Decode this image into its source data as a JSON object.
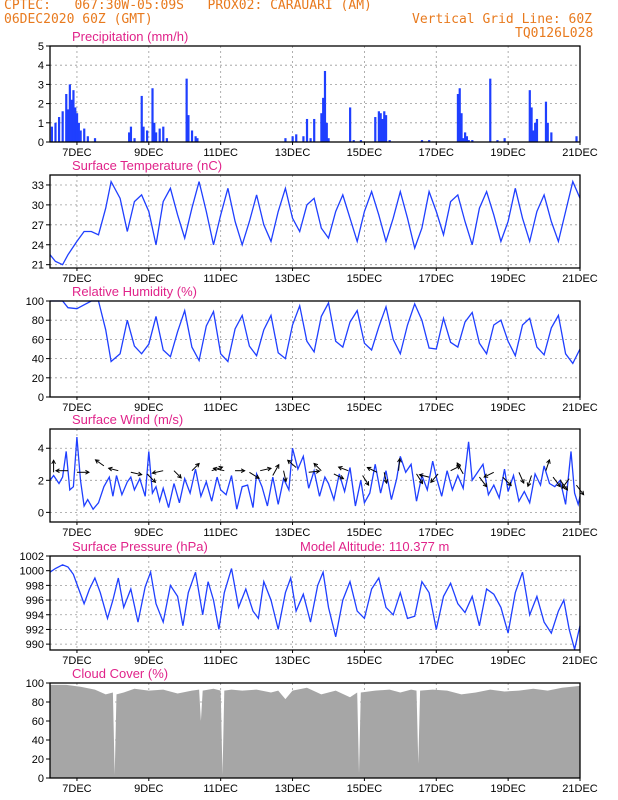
{
  "header": {
    "line1": "CPTEC:   067:30W-05:09S   PROX02: CARAUARI (AM)",
    "line2_left": "06DEC2020 60Z (GMT)",
    "line2_right": "Vertical Grid Line: 60Z",
    "line3_right": "TQ0126L028",
    "colors": {
      "header": "#e87a1e",
      "panel_title": "#e0238a",
      "series": "#1f3fff",
      "cloud": "#a6a6a6",
      "wind_arrow": "#000000"
    }
  },
  "x_axis": {
    "tick_labels": [
      "7DEC",
      "9DEC",
      "11DEC",
      "13DEC",
      "15DEC",
      "17DEC",
      "19DEC",
      "21DEC"
    ],
    "tick_days": [
      7,
      9,
      11,
      13,
      15,
      17,
      19,
      21
    ],
    "range_days": [
      6.25,
      21.0
    ]
  },
  "panels": [
    {
      "id": "precip",
      "title": "Precipitation (mm/h)",
      "extra": ""
    },
    {
      "id": "temp",
      "title": "Surface Temperature (nC)",
      "extra": ""
    },
    {
      "id": "rh",
      "title": "Relative Humidity (%)",
      "extra": ""
    },
    {
      "id": "wind",
      "title": "Surface Wind (m/s)",
      "extra": ""
    },
    {
      "id": "press",
      "title": "Surface Pressure (hPa)",
      "extra": "Model Altitude: 110.377 m"
    },
    {
      "id": "cloud",
      "title": "Cloud Cover (%)",
      "extra": ""
    }
  ],
  "chart_data": [
    {
      "id": "precip",
      "type": "bar",
      "title": "Precipitation (mm/h)",
      "ylim": [
        0,
        5
      ],
      "yticks": [
        "0",
        "1",
        "2",
        "3",
        "4",
        "5"
      ],
      "grid": true,
      "x": [
        6.3,
        6.4,
        6.5,
        6.6,
        6.7,
        6.75,
        6.8,
        6.85,
        6.9,
        6.95,
        7.0,
        7.05,
        7.1,
        7.2,
        7.3,
        7.5,
        8.45,
        8.5,
        8.6,
        8.8,
        8.85,
        8.95,
        9.1,
        9.15,
        9.2,
        9.3,
        9.4,
        9.5,
        10.05,
        10.1,
        10.2,
        10.3,
        10.35,
        12.8,
        13.0,
        13.1,
        13.3,
        13.4,
        13.5,
        13.6,
        13.8,
        13.85,
        13.9,
        13.95,
        14.0,
        14.6,
        14.7,
        14.9,
        15.3,
        15.4,
        15.45,
        15.5,
        15.55,
        15.6,
        15.7,
        16.6,
        16.8,
        17.6,
        17.65,
        17.7,
        17.75,
        17.8,
        17.85,
        17.9,
        18.0,
        18.5,
        18.7,
        18.9,
        19.6,
        19.65,
        19.7,
        19.75,
        19.8,
        20.05,
        20.1,
        20.2,
        20.9
      ],
      "values": [
        0.8,
        1.0,
        1.3,
        1.6,
        2.5,
        1.7,
        3.0,
        2.2,
        2.7,
        1.8,
        1.5,
        1.0,
        0.6,
        0.7,
        0.3,
        0.2,
        0.5,
        0.8,
        0.2,
        2.4,
        0.8,
        0.6,
        2.8,
        1.0,
        0.5,
        0.7,
        0.8,
        0.2,
        3.3,
        1.4,
        0.6,
        0.3,
        0.2,
        0.2,
        0.3,
        0.4,
        0.3,
        1.2,
        0.2,
        1.2,
        1.5,
        2.3,
        3.7,
        1.0,
        0.2,
        1.8,
        0.1,
        0.1,
        1.3,
        1.6,
        1.5,
        1.2,
        1.6,
        1.4,
        0.1,
        0.1,
        0.1,
        2.5,
        2.8,
        1.5,
        0.2,
        0.5,
        0.3,
        0.1,
        0.1,
        3.3,
        0.1,
        0.2,
        2.7,
        1.8,
        0.6,
        1.0,
        1.2,
        2.1,
        1.0,
        0.5,
        0.3
      ]
    },
    {
      "id": "temp",
      "type": "line",
      "title": "Surface Temperature (nC)",
      "ylim": [
        20.5,
        34.5
      ],
      "yticks": [
        "21",
        "24",
        "27",
        "30",
        "33"
      ],
      "ytick_values": [
        21,
        24,
        27,
        30,
        33
      ],
      "grid": true,
      "x": [
        6.25,
        6.4,
        6.6,
        6.75,
        7.0,
        7.2,
        7.4,
        7.6,
        7.8,
        7.95,
        8.2,
        8.4,
        8.6,
        8.8,
        9.0,
        9.2,
        9.4,
        9.6,
        9.8,
        10.0,
        10.2,
        10.4,
        10.6,
        10.8,
        11.0,
        11.2,
        11.4,
        11.6,
        11.8,
        12.0,
        12.2,
        12.4,
        12.6,
        12.8,
        13.0,
        13.2,
        13.4,
        13.6,
        13.8,
        14.0,
        14.2,
        14.4,
        14.6,
        14.8,
        15.0,
        15.2,
        15.4,
        15.6,
        15.8,
        16.0,
        16.2,
        16.4,
        16.6,
        16.8,
        17.0,
        17.2,
        17.4,
        17.6,
        17.8,
        18.0,
        18.2,
        18.4,
        18.6,
        18.8,
        19.0,
        19.2,
        19.4,
        19.6,
        19.8,
        20.0,
        20.2,
        20.4,
        20.6,
        20.8,
        21.0
      ],
      "values": [
        22.5,
        21.5,
        21.0,
        22.5,
        24.5,
        26.0,
        26.0,
        25.5,
        29.5,
        33.5,
        31.0,
        26.0,
        30.5,
        31.5,
        29.0,
        24.0,
        30.5,
        32.5,
        28.5,
        25.0,
        29.5,
        33.5,
        29.0,
        24.0,
        28.5,
        32.5,
        27.5,
        24.0,
        27.5,
        31.5,
        27.0,
        24.5,
        29.0,
        32.5,
        28.0,
        26.0,
        30.0,
        31.0,
        26.5,
        25.0,
        29.0,
        31.5,
        28.0,
        24.5,
        29.0,
        32.0,
        28.5,
        24.5,
        28.0,
        32.0,
        28.0,
        23.5,
        26.5,
        32.0,
        29.0,
        25.5,
        30.5,
        31.5,
        27.5,
        24.0,
        29.5,
        32.0,
        28.5,
        24.5,
        27.5,
        32.5,
        28.0,
        24.5,
        29.0,
        31.5,
        27.5,
        24.5,
        29.0,
        33.5,
        31.0
      ]
    },
    {
      "id": "rh",
      "type": "line",
      "title": "Relative Humidity (%)",
      "ylim": [
        0,
        100
      ],
      "yticks": [
        "0",
        "20",
        "40",
        "60",
        "80",
        "100"
      ],
      "ytick_values": [
        0,
        20,
        40,
        60,
        80,
        100
      ],
      "grid": true,
      "x": [
        6.25,
        6.4,
        6.6,
        6.75,
        7.0,
        7.2,
        7.4,
        7.6,
        7.8,
        7.95,
        8.2,
        8.4,
        8.6,
        8.8,
        9.0,
        9.2,
        9.4,
        9.6,
        9.8,
        10.0,
        10.2,
        10.4,
        10.6,
        10.8,
        11.0,
        11.2,
        11.4,
        11.6,
        11.8,
        12.0,
        12.2,
        12.4,
        12.6,
        12.8,
        13.0,
        13.2,
        13.4,
        13.6,
        13.8,
        14.0,
        14.2,
        14.4,
        14.6,
        14.8,
        15.0,
        15.2,
        15.4,
        15.6,
        15.8,
        16.0,
        16.2,
        16.4,
        16.6,
        16.8,
        17.0,
        17.2,
        17.4,
        17.6,
        17.8,
        18.0,
        18.2,
        18.4,
        18.6,
        18.8,
        19.0,
        19.2,
        19.4,
        19.6,
        19.8,
        20.0,
        20.2,
        20.4,
        20.6,
        20.8,
        21.0
      ],
      "values": [
        100,
        100,
        100,
        93,
        92,
        96,
        100,
        100,
        70,
        37,
        45,
        80,
        53,
        45,
        55,
        84,
        49,
        42,
        68,
        90,
        52,
        38,
        74,
        89,
        45,
        37,
        71,
        85,
        53,
        43,
        70,
        85,
        46,
        40,
        75,
        95,
        58,
        47,
        84,
        98,
        58,
        52,
        78,
        90,
        56,
        49,
        73,
        94,
        60,
        45,
        75,
        97,
        80,
        51,
        50,
        82,
        57,
        52,
        78,
        88,
        56,
        45,
        75,
        80,
        58,
        43,
        75,
        82,
        52,
        44,
        72,
        85,
        45,
        35,
        50
      ]
    },
    {
      "id": "wind",
      "type": "line",
      "title": "Surface Wind (m/s)",
      "ylim": [
        -0.6,
        5.2
      ],
      "yticks": [
        "0",
        "2",
        "4"
      ],
      "ytick_values": [
        0,
        2,
        4
      ],
      "grid": true,
      "x": [
        6.25,
        6.35,
        6.5,
        6.6,
        6.7,
        6.8,
        6.9,
        7.0,
        7.1,
        7.2,
        7.3,
        7.45,
        7.6,
        7.75,
        7.9,
        8.0,
        8.1,
        8.25,
        8.4,
        8.5,
        8.6,
        8.75,
        8.9,
        9.0,
        9.1,
        9.2,
        9.3,
        9.4,
        9.55,
        9.7,
        9.85,
        10.0,
        10.15,
        10.3,
        10.45,
        10.6,
        10.75,
        10.9,
        11.0,
        11.15,
        11.3,
        11.45,
        11.6,
        11.75,
        11.9,
        12.0,
        12.15,
        12.3,
        12.45,
        12.6,
        12.75,
        12.9,
        13.0,
        13.15,
        13.3,
        13.45,
        13.6,
        13.75,
        13.9,
        14.0,
        14.15,
        14.3,
        14.45,
        14.6,
        14.75,
        14.9,
        15.0,
        15.15,
        15.3,
        15.45,
        15.6,
        15.75,
        15.9,
        16.0,
        16.15,
        16.3,
        16.45,
        16.6,
        16.75,
        16.9,
        17.0,
        17.15,
        17.3,
        17.45,
        17.6,
        17.75,
        17.9,
        18.0,
        18.15,
        18.3,
        18.45,
        18.6,
        18.75,
        18.9,
        19.0,
        19.15,
        19.3,
        19.45,
        19.6,
        19.75,
        19.9,
        20.0,
        20.15,
        20.3,
        20.45,
        20.6,
        20.75,
        20.85,
        20.95,
        21.0
      ],
      "values": [
        2.0,
        2.3,
        1.8,
        2.2,
        3.8,
        1.4,
        1.6,
        4.7,
        2.0,
        0.4,
        0.8,
        0.2,
        0.6,
        1.6,
        2.2,
        1.0,
        2.3,
        1.1,
        1.9,
        2.2,
        1.4,
        2.1,
        1.0,
        3.8,
        1.2,
        1.6,
        0.7,
        1.5,
        0.3,
        1.8,
        0.6,
        2.1,
        1.2,
        2.7,
        1.0,
        1.9,
        0.7,
        2.2,
        1.4,
        1.1,
        2.3,
        0.2,
        1.6,
        1.7,
        0.3,
        2.4,
        1.6,
        0.4,
        2.2,
        0.5,
        2.1,
        1.4,
        4.0,
        2.7,
        3.5,
        1.5,
        2.6,
        1.0,
        2.2,
        1.8,
        0.8,
        2.4,
        1.3,
        2.8,
        0.4,
        2.0,
        0.6,
        1.2,
        3.0,
        1.2,
        2.6,
        0.8,
        2.1,
        3.5,
        2.5,
        3.0,
        0.7,
        2.3,
        1.4,
        3.2,
        2.2,
        1.0,
        2.6,
        1.4,
        2.3,
        1.5,
        4.4,
        2.0,
        2.5,
        3.0,
        1.1,
        1.7,
        0.9,
        2.7,
        1.3,
        2.3,
        0.7,
        1.3,
        0.6,
        2.4,
        1.7,
        2.9,
        1.8,
        1.6,
        2.0,
        0.5,
        3.8,
        1.2,
        0.5,
        1.0
      ],
      "arrows": [
        [
          6.35,
          2.5,
          0,
          1
        ],
        [
          6.75,
          2.6,
          -1,
          0
        ],
        [
          7.0,
          2.5,
          1,
          0
        ],
        [
          7.75,
          2.9,
          -0.7,
          0.5
        ],
        [
          8.15,
          2.6,
          -0.8,
          0.2
        ],
        [
          8.5,
          2.5,
          0.9,
          -0.2
        ],
        [
          8.95,
          2.4,
          0.7,
          -0.7
        ],
        [
          9.4,
          2.6,
          -0.9,
          -0.2
        ],
        [
          9.7,
          2.6,
          0.6,
          -0.6
        ],
        [
          10.2,
          2.6,
          0.6,
          0.6
        ],
        [
          10.75,
          2.6,
          0.9,
          0.3
        ],
        [
          11.1,
          2.6,
          -0.9,
          0.2
        ],
        [
          11.4,
          2.6,
          0.8,
          0
        ],
        [
          11.8,
          2.5,
          0.8,
          -0.5
        ],
        [
          12.1,
          2.6,
          0.9,
          0.2
        ],
        [
          12.45,
          2.3,
          0.5,
          0.9
        ],
        [
          12.75,
          2.6,
          0.2,
          -0.9
        ],
        [
          13.1,
          2.8,
          -0.7,
          0.6
        ],
        [
          13.45,
          2.5,
          0.9,
          0.1
        ],
        [
          13.8,
          2.6,
          -0.6,
          0.6
        ],
        [
          14.15,
          2.4,
          0.8,
          -0.4
        ],
        [
          14.55,
          2.6,
          -0.8,
          0.3
        ],
        [
          14.95,
          2.3,
          0.5,
          -0.8
        ],
        [
          15.35,
          2.5,
          -0.8,
          0.4
        ],
        [
          15.55,
          2.5,
          0.2,
          -0.9
        ],
        [
          15.95,
          2.6,
          0.1,
          1
        ],
        [
          16.45,
          2.4,
          0.5,
          -0.8
        ],
        [
          16.8,
          2.2,
          -0.8,
          0.2
        ],
        [
          17.05,
          2.4,
          -0.6,
          -0.7
        ],
        [
          17.4,
          2.6,
          0.8,
          0.4
        ],
        [
          17.75,
          2.4,
          -0.5,
          0.9
        ],
        [
          18.2,
          2.2,
          0.6,
          -0.8
        ],
        [
          18.6,
          2.5,
          -0.8,
          -0.4
        ],
        [
          18.85,
          2.2,
          0.7,
          -0.7
        ],
        [
          19.3,
          2.5,
          0.4,
          -0.9
        ],
        [
          19.65,
          2.3,
          -0.3,
          -0.9
        ],
        [
          20.05,
          2.6,
          0.3,
          0.9
        ],
        [
          20.25,
          2.2,
          0.6,
          -0.8
        ],
        [
          20.45,
          2.0,
          0.6,
          -0.8
        ],
        [
          20.7,
          2.1,
          -0.6,
          -0.8
        ],
        [
          20.9,
          1.7,
          0.6,
          -0.8
        ]
      ]
    },
    {
      "id": "press",
      "type": "line",
      "title": "Surface Pressure (hPa)",
      "ylim": [
        989.2,
        1002
      ],
      "yticks": [
        "990",
        "992",
        "994",
        "996",
        "998",
        "1000",
        "1002"
      ],
      "ytick_values": [
        990,
        992,
        994,
        996,
        998,
        1000,
        1002
      ],
      "grid": true,
      "x": [
        6.25,
        6.4,
        6.6,
        6.75,
        6.9,
        7.05,
        7.2,
        7.35,
        7.5,
        7.65,
        7.85,
        8.0,
        8.15,
        8.3,
        8.5,
        8.7,
        8.9,
        9.05,
        9.2,
        9.4,
        9.6,
        9.8,
        9.95,
        10.1,
        10.3,
        10.5,
        10.65,
        10.8,
        10.95,
        11.1,
        11.3,
        11.5,
        11.7,
        11.9,
        12.05,
        12.2,
        12.4,
        12.6,
        12.8,
        12.95,
        13.1,
        13.3,
        13.5,
        13.7,
        13.85,
        14.0,
        14.2,
        14.4,
        14.6,
        14.8,
        15.0,
        15.2,
        15.4,
        15.6,
        15.8,
        16.0,
        16.2,
        16.4,
        16.6,
        16.8,
        17.0,
        17.2,
        17.4,
        17.6,
        17.8,
        18.0,
        18.2,
        18.4,
        18.6,
        18.8,
        19.0,
        19.2,
        19.4,
        19.6,
        19.8,
        20.0,
        20.2,
        20.4,
        20.55,
        20.7,
        20.85,
        21.0
      ],
      "values": [
        999.8,
        1000.3,
        1000.8,
        1000.5,
        999.5,
        997.5,
        995.5,
        997.5,
        999.0,
        997.0,
        993.5,
        996.0,
        999.0,
        995.0,
        997.5,
        993.0,
        997.8,
        999.8,
        995.5,
        993.0,
        998.0,
        996.5,
        992.5,
        997.0,
        999.8,
        994.0,
        998.5,
        996.0,
        992.0,
        997.0,
        1000.3,
        995.0,
        997.5,
        994.5,
        993.5,
        998.5,
        996.0,
        992.0,
        997.0,
        999.0,
        994.5,
        996.8,
        993.0,
        998.0,
        999.8,
        995.0,
        991.0,
        996.0,
        998.5,
        994.5,
        993.5,
        997.5,
        999.0,
        995.0,
        994.0,
        997.0,
        993.5,
        993.8,
        998.5,
        997.0,
        992.0,
        996.5,
        998.3,
        995.5,
        994.3,
        996.5,
        992.5,
        997.5,
        996.8,
        995.0,
        991.5,
        997.0,
        999.8,
        994.0,
        996.5,
        993.0,
        991.5,
        994.5,
        996.0,
        992.0,
        989.3,
        992.5
      ]
    },
    {
      "id": "cloud",
      "type": "area",
      "title": "Cloud Cover (%)",
      "ylim": [
        0,
        100
      ],
      "yticks": [
        "0",
        "20",
        "40",
        "60",
        "80",
        "100"
      ],
      "ytick_values": [
        0,
        20,
        40,
        60,
        80,
        100
      ],
      "grid": true,
      "x": [
        6.25,
        6.7,
        7.1,
        7.5,
        7.8,
        8.0,
        8.05,
        8.1,
        8.3,
        8.6,
        9.0,
        9.4,
        9.8,
        10.2,
        10.4,
        10.45,
        10.5,
        10.8,
        11.0,
        11.05,
        11.1,
        11.3,
        11.6,
        12.0,
        12.4,
        12.6,
        12.8,
        13.0,
        13.4,
        13.8,
        14.2,
        14.6,
        14.8,
        14.85,
        14.9,
        15.3,
        15.7,
        16.0,
        16.3,
        16.45,
        16.5,
        16.55,
        16.9,
        17.3,
        17.7,
        18.1,
        18.5,
        18.9,
        19.3,
        19.7,
        20.1,
        20.5,
        21.0
      ],
      "values": [
        98,
        98,
        96,
        93,
        88,
        90,
        3,
        88,
        90,
        94,
        92,
        93,
        89,
        92,
        93,
        60,
        92,
        94,
        92,
        3,
        92,
        93,
        92,
        93,
        90,
        92,
        83,
        92,
        95,
        88,
        92,
        85,
        90,
        5,
        90,
        92,
        93,
        90,
        93,
        92,
        15,
        92,
        93,
        92,
        88,
        90,
        93,
        91,
        92,
        94,
        92,
        95,
        97
      ]
    }
  ]
}
